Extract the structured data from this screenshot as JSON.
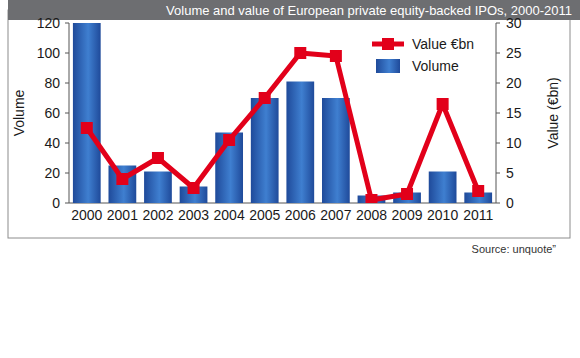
{
  "chart_data": {
    "type": "bar",
    "title": "Volume and value of European private equity-backed IPOs, 2000-2011",
    "y_label": "Volume",
    "y2_label": "Value (€bn)",
    "source": "Source: unquote”",
    "categories": [
      "2000",
      "2001",
      "2002",
      "2003",
      "2004",
      "2005",
      "2006",
      "2007",
      "2008",
      "2009",
      "2010",
      "2011"
    ],
    "series": [
      {
        "name": "Value €bn",
        "type": "line",
        "color": "#e2001a",
        "marker": "square",
        "axis": "y2",
        "values": [
          12.5,
          4,
          7.5,
          2.5,
          10.5,
          17.5,
          25,
          24.5,
          0.5,
          1.5,
          16.5,
          2
        ]
      },
      {
        "name": "Volume",
        "type": "bar",
        "color": "#1f4a9a",
        "values": [
          120,
          25,
          21,
          11,
          47,
          70,
          81,
          70,
          5,
          7,
          21,
          7
        ]
      }
    ],
    "ylim": [
      0,
      120
    ],
    "yticks": [
      0,
      20,
      40,
      60,
      80,
      100,
      120
    ],
    "y2lim": [
      0,
      30
    ],
    "y2ticks": [
      0,
      5,
      10,
      15,
      20,
      25,
      30
    ],
    "legend": "top-right",
    "grid": false
  }
}
